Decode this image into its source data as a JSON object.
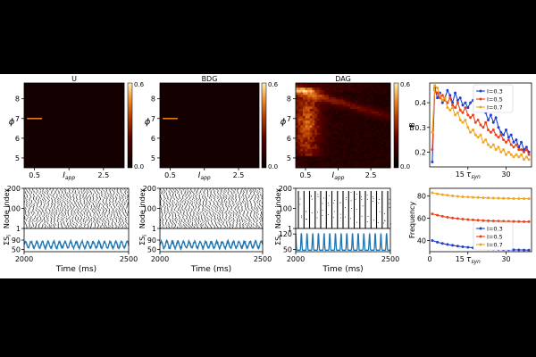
{
  "figure": {
    "heatmap_cbar_ticks": [
      "0.6",
      "0.0"
    ],
    "dag_cbar_ticks": [
      "0.6",
      "0.0"
    ],
    "dag_cbar_label": "B"
  },
  "chart_data": [
    {
      "type": "heatmap",
      "id": "heat-u",
      "title": "U",
      "xlabel": "I_app",
      "ylabel": "ϕ",
      "xticks": [
        0.5,
        1.5,
        2.5
      ],
      "xtick_labels": [
        "0.5",
        "",
        "2.5"
      ],
      "yticks": [
        5,
        6,
        7,
        8
      ],
      "xlim": [
        0.2,
        3.1
      ],
      "ylim": [
        4.5,
        8.8
      ],
      "clim": [
        0.0,
        0.6
      ],
      "highlights": [
        {
          "x0": 0.28,
          "x1": 0.72,
          "y": 7.0,
          "value": 0.45
        }
      ]
    },
    {
      "type": "heatmap",
      "id": "heat-bdg",
      "title": "BDG",
      "xlabel": "I_app",
      "ylabel": "ϕ",
      "xticks": [
        0.5,
        1.5,
        2.5
      ],
      "xtick_labels": [
        "0.5",
        "",
        "2.5"
      ],
      "yticks": [
        5,
        6,
        7,
        8
      ],
      "xlim": [
        0.2,
        3.1
      ],
      "ylim": [
        4.5,
        8.8
      ],
      "clim": [
        0.0,
        0.6
      ],
      "highlights": [
        {
          "x0": 0.28,
          "x1": 0.72,
          "y": 7.0,
          "value": 0.45
        }
      ]
    },
    {
      "type": "heatmap",
      "id": "heat-dag",
      "title": "DAG",
      "xlabel": "I_app",
      "ylabel": "ϕ",
      "xticks": [
        0.5,
        1.5,
        2.5
      ],
      "xtick_labels": [
        "0.5",
        "",
        "2.5"
      ],
      "yticks": [
        5,
        6,
        7,
        8
      ],
      "xlim": [
        0.2,
        3.1
      ],
      "ylim": [
        4.5,
        8.8
      ],
      "clim": [
        0.0,
        0.6
      ],
      "pattern": "high values along a diagonal band from low I_app, high ϕ toward larger I_app, bright patch near I_app 0.3-0.8, ϕ 5.5-8"
    },
    {
      "type": "line",
      "id": "b-vs-tau",
      "xlabel": "τ_syn",
      "ylabel": "B",
      "xlim": [
        0,
        40
      ],
      "ylim": [
        0.14,
        0.48
      ],
      "xticks": [
        15,
        30
      ],
      "xtick_labels": [
        "15",
        "30"
      ],
      "yticks": [
        0.2,
        0.3,
        0.4
      ],
      "ytick_labels": [
        "0.2",
        "0.3",
        "0.4"
      ],
      "legend": "top-right",
      "x": [
        1,
        2,
        3,
        4,
        5,
        6,
        7,
        8,
        9,
        10,
        11,
        12,
        13,
        14,
        15,
        16,
        17,
        18,
        19,
        20,
        21,
        22,
        23,
        24,
        25,
        26,
        27,
        28,
        29,
        30,
        31,
        32,
        33,
        34,
        35,
        36,
        37,
        38,
        39
      ],
      "series": [
        {
          "name": "I=0.3",
          "color": "#1f3fd0",
          "values": [
            0.16,
            0.46,
            0.42,
            0.44,
            0.4,
            0.42,
            0.45,
            0.43,
            0.4,
            0.44,
            0.41,
            0.42,
            0.39,
            0.4,
            0.38,
            0.4,
            0.41,
            0.38,
            0.42,
            0.37,
            0.38,
            0.36,
            0.33,
            0.35,
            0.32,
            0.34,
            0.3,
            0.28,
            0.27,
            0.29,
            0.26,
            0.27,
            0.24,
            0.25,
            0.22,
            0.24,
            0.21,
            0.22,
            0.2
          ]
        },
        {
          "name": "I=0.5",
          "color": "#e8431c",
          "values": [
            0.21,
            0.45,
            0.44,
            0.42,
            0.43,
            0.41,
            0.4,
            0.42,
            0.39,
            0.38,
            0.4,
            0.37,
            0.36,
            0.38,
            0.35,
            0.34,
            0.35,
            0.32,
            0.33,
            0.31,
            0.3,
            0.32,
            0.29,
            0.28,
            0.29,
            0.27,
            0.26,
            0.27,
            0.25,
            0.24,
            0.25,
            0.23,
            0.22,
            0.23,
            0.21,
            0.21,
            0.2,
            0.21,
            0.19
          ]
        },
        {
          "name": "I=0.7",
          "color": "#f0a623",
          "values": [
            0.28,
            0.47,
            0.46,
            0.43,
            0.41,
            0.42,
            0.38,
            0.37,
            0.38,
            0.35,
            0.36,
            0.33,
            0.32,
            0.33,
            0.3,
            0.28,
            0.29,
            0.27,
            0.26,
            0.27,
            0.24,
            0.25,
            0.23,
            0.22,
            0.23,
            0.21,
            0.22,
            0.2,
            0.21,
            0.19,
            0.2,
            0.19,
            0.18,
            0.19,
            0.18,
            0.19,
            0.17,
            0.18,
            0.17
          ]
        }
      ]
    },
    {
      "type": "scatter",
      "id": "raster-u",
      "ylabel": "Node index",
      "yticks": [
        1,
        100,
        200
      ],
      "ylim": [
        1,
        200
      ],
      "xlim": [
        2000,
        2500
      ],
      "pattern": "asynchronous spikes"
    },
    {
      "type": "line",
      "id": "sum-u",
      "xlabel": "Time (ms)",
      "ylabel": "ΣS_i",
      "xlim": [
        2000,
        2500
      ],
      "xticks": [
        2000,
        2500
      ],
      "ylim": [
        40,
        140
      ],
      "yticks": [
        50,
        90
      ],
      "series": [
        {
          "color": "#1f77b4",
          "oscillation": {
            "mean": 70,
            "amplitude": 14,
            "period_ms": 27
          }
        }
      ]
    },
    {
      "type": "scatter",
      "id": "raster-bdg",
      "ylabel": "Node index",
      "yticks": [
        1,
        100,
        200
      ],
      "ylim": [
        1,
        200
      ],
      "xlim": [
        2000,
        2500
      ],
      "pattern": "asynchronous spikes"
    },
    {
      "type": "line",
      "id": "sum-bdg",
      "xlabel": "Time (ms)",
      "ylabel": "ΣS_i",
      "xlim": [
        2000,
        2500
      ],
      "xticks": [
        2000,
        2500
      ],
      "ylim": [
        40,
        140
      ],
      "yticks": [
        50,
        90
      ],
      "series": [
        {
          "color": "#1f77b4",
          "oscillation": {
            "mean": 70,
            "amplitude": 14,
            "period_ms": 27
          }
        }
      ]
    },
    {
      "type": "scatter",
      "id": "raster-dag",
      "ylabel": "Node index",
      "yticks": [
        1,
        100,
        200
      ],
      "ylim": [
        1,
        200
      ],
      "xlim": [
        2000,
        2500
      ],
      "pattern": "synchronized bursts about every 30 ms"
    },
    {
      "type": "line",
      "id": "sum-dag",
      "xlabel": "Time (ms)",
      "ylabel": "ΣS_i",
      "xlim": [
        2000,
        2500
      ],
      "xticks": [
        2000,
        2500
      ],
      "ylim": [
        40,
        145
      ],
      "yticks": [
        50,
        120
      ],
      "series": [
        {
          "color": "#1f77b4",
          "oscillation": {
            "mean": 85,
            "amplitude": 38,
            "period_ms": 30
          }
        }
      ]
    },
    {
      "type": "line",
      "id": "freq-vs-tau",
      "xlabel": "τ_syn",
      "ylabel": "Frequency",
      "xlim": [
        0,
        40
      ],
      "ylim": [
        30,
        87
      ],
      "xticks": [
        0,
        15,
        30
      ],
      "xtick_labels": [
        "0",
        "15",
        "30"
      ],
      "yticks": [
        40,
        60,
        80
      ],
      "ytick_labels": [
        "40",
        "60",
        "80"
      ],
      "legend": "center-right",
      "x": [
        1,
        3,
        5,
        7,
        9,
        11,
        13,
        15,
        17,
        19,
        21,
        23,
        25,
        27,
        29,
        31,
        33,
        35,
        37,
        39
      ],
      "series": [
        {
          "name": "I=0.3",
          "color": "#1f3fd0",
          "values": [
            40,
            38.5,
            37.4,
            36.5,
            35.7,
            35.0,
            34.4,
            33.9,
            33.5,
            33.1,
            32.8,
            32.5,
            32.3,
            32.1,
            31.9,
            31.8,
            31.7,
            31.6,
            31.5,
            31.4
          ]
        },
        {
          "name": "I=0.5",
          "color": "#e8431c",
          "values": [
            64,
            62.8,
            61.8,
            61.0,
            60.3,
            59.8,
            59.3,
            58.9,
            58.6,
            58.3,
            58.0,
            57.8,
            57.6,
            57.5,
            57.4,
            57.3,
            57.2,
            57.1,
            57.0,
            57.0
          ]
        },
        {
          "name": "I=0.7",
          "color": "#f0a623",
          "values": [
            83,
            82.0,
            81.3,
            80.7,
            80.2,
            79.8,
            79.4,
            79.1,
            78.9,
            78.7,
            78.5,
            78.3,
            78.2,
            78.1,
            78.0,
            77.9,
            77.8,
            77.8,
            77.7,
            77.7
          ]
        }
      ]
    }
  ]
}
